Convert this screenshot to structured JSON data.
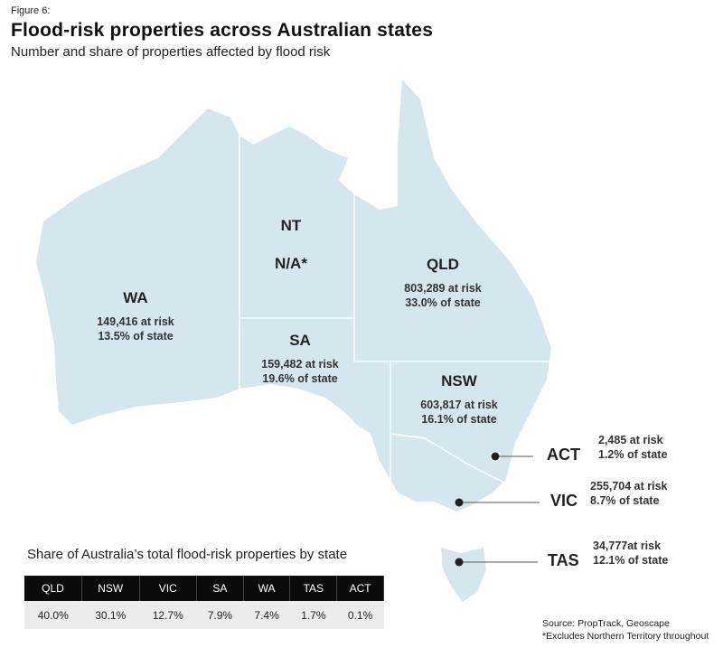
{
  "figure_label": "Figure 6:",
  "title": "Flood-risk properties across Australian states",
  "subtitle": "Number and share of properties affected by flood risk",
  "map_color": "#d5e6ef",
  "states": {
    "wa": {
      "name": "WA",
      "at_risk": "149,416 at risk",
      "share": "13.5% of state"
    },
    "nt": {
      "name": "NT",
      "value": "N/A*"
    },
    "qld": {
      "name": "QLD",
      "at_risk": "803,289 at risk",
      "share": "33.0% of state"
    },
    "sa": {
      "name": "SA",
      "at_risk": "159,482 at risk",
      "share": "19.6% of state"
    },
    "nsw": {
      "name": "NSW",
      "at_risk": "603,817 at risk",
      "share": "16.1% of state"
    },
    "act": {
      "name": "ACT",
      "at_risk": "2,485 at risk",
      "share": "1.2% of state"
    },
    "vic": {
      "name": "VIC",
      "at_risk": "255,704 at risk",
      "share": "8.7% of state"
    },
    "tas": {
      "name": "TAS",
      "at_risk": "34,777at risk",
      "share": "12.1% of state"
    }
  },
  "share_table": {
    "title": "Share of Australia’s total flood-risk properties by state",
    "headers": [
      "QLD",
      "NSW",
      "VIC",
      "SA",
      "WA",
      "TAS",
      "ACT"
    ],
    "values": [
      "40.0%",
      "30.1%",
      "12.7%",
      "7.9%",
      "7.4%",
      "1.7%",
      "0.1%"
    ]
  },
  "source": "Source: PropTrack, Geoscape",
  "footnote": "*Excludes Northern Territory throughout"
}
